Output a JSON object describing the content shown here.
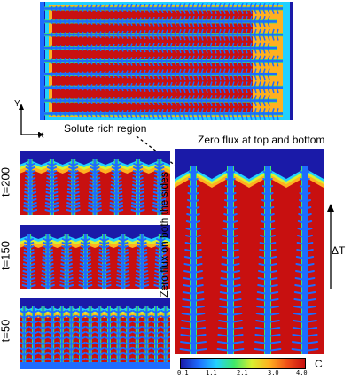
{
  "axes": {
    "y_label": "Y",
    "x_label": "X"
  },
  "annotations": {
    "solute_region": "Solute rich region",
    "zero_flux_top_bottom": "Zero flux at top and bottom",
    "zero_flux_sides": "Zero flux  on both the sides",
    "delta_t": "ΔT"
  },
  "time_labels": [
    "t=200",
    "t=150",
    "t=50"
  ],
  "colorbar": {
    "label": "C",
    "ticks": [
      "0.1",
      "1.1",
      "2.1",
      "3.0",
      "4.0"
    ],
    "colors": [
      "#1a1aa8",
      "#1e6cff",
      "#22d1ff",
      "#3ee86a",
      "#d8f030",
      "#ffb020",
      "#f05018",
      "#c81010"
    ]
  }
}
